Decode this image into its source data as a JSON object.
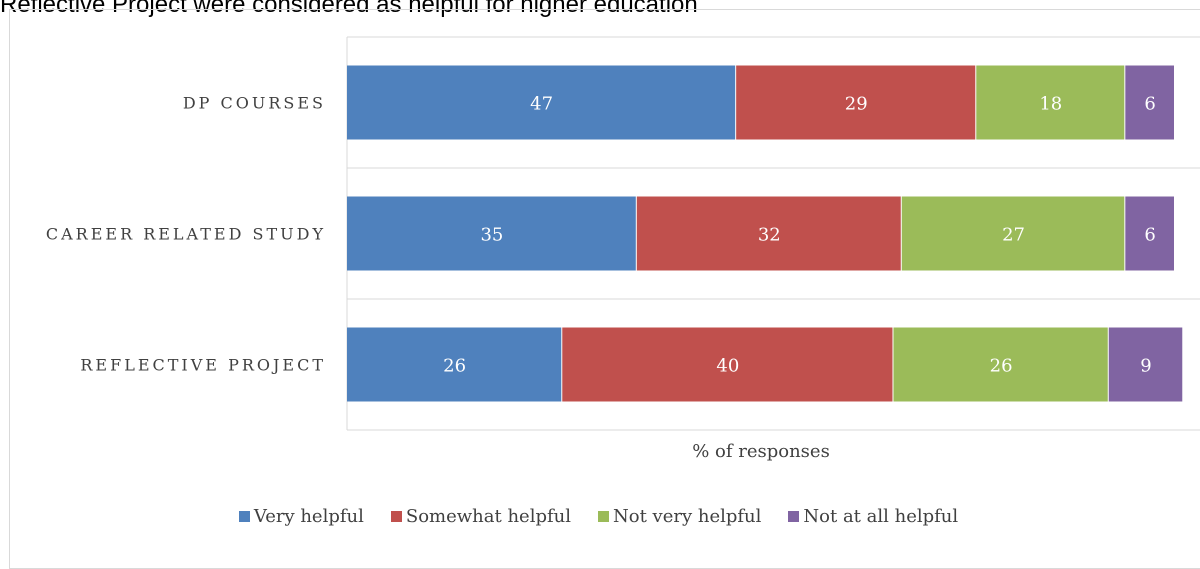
{
  "title": "Reflective Project were considered as helpful for higher education",
  "colors": {
    "very_helpful": "#4f81bd",
    "somewhat_helpful": "#c0504d",
    "not_very_helpful": "#9bbb59",
    "not_at_all_helpful": "#8064a2",
    "gridline": "#d9d9d9"
  },
  "chart_data": {
    "type": "bar",
    "orientation": "horizontal",
    "stacked": true,
    "title": "Reflective Project were considered as helpful for higher education",
    "xlabel": "% of responses",
    "ylabel": "",
    "xlim": [
      0,
      100
    ],
    "grid": true,
    "legend_position": "bottom",
    "categories": [
      "DP COURSES",
      "CAREER RELATED STUDY",
      "REFLECTIVE PROJECT"
    ],
    "series": [
      {
        "name": "Very helpful",
        "color": "#4f81bd",
        "values": [
          47,
          35,
          26
        ]
      },
      {
        "name": "Somewhat helpful",
        "color": "#c0504d",
        "values": [
          29,
          32,
          40
        ]
      },
      {
        "name": "Not very helpful",
        "color": "#9bbb59",
        "values": [
          18,
          27,
          26
        ]
      },
      {
        "name": "Not at all helpful",
        "color": "#8064a2",
        "values": [
          6,
          6,
          9
        ]
      }
    ]
  }
}
